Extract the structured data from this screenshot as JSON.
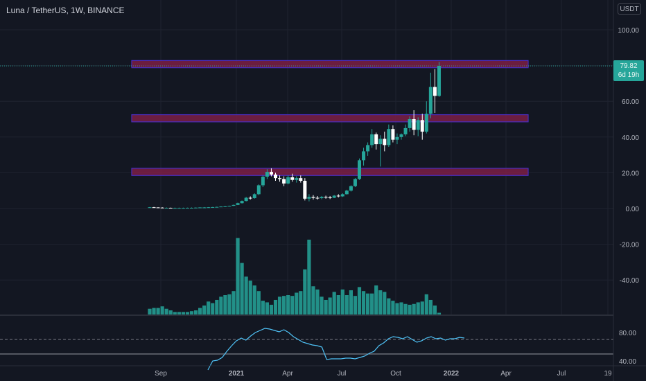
{
  "header": {
    "symbol_title": "Luna / TetherUS, 1W, BINANCE",
    "currency": "USDT"
  },
  "price_label": {
    "price": "79.82",
    "countdown": "6d 19h"
  },
  "colors": {
    "background": "#131722",
    "up": "#26a69a",
    "down": "#ffffff",
    "zone_fill": "#7b1f45",
    "zone_border": "#4a2dbf",
    "rsi_line": "#4fc3f7",
    "volume": "#26a69a"
  },
  "chart_data": [
    {
      "type": "candlestick",
      "title": "Luna / TetherUS, 1W, BINANCE",
      "x_tick_labels": [
        "Sep",
        "2021",
        "Apr",
        "Jul",
        "Oct",
        "2022",
        "Apr",
        "Jul",
        "19"
      ],
      "y_tick_labels": [
        "100.00",
        "80.00",
        "60.00",
        "40.00",
        "20.00",
        "0.00",
        "-20.00",
        "-40.00"
      ],
      "ylim": [
        -58,
        112
      ],
      "candles": [
        {
          "o": 0.6,
          "h": 0.8,
          "l": 0.4,
          "c": 0.7
        },
        {
          "o": 0.7,
          "h": 0.9,
          "l": 0.5,
          "c": 0.6
        },
        {
          "o": 0.6,
          "h": 0.7,
          "l": 0.4,
          "c": 0.5
        },
        {
          "o": 0.5,
          "h": 0.7,
          "l": 0.3,
          "c": 0.4
        },
        {
          "o": 0.4,
          "h": 0.6,
          "l": 0.3,
          "c": 0.4
        },
        {
          "o": 0.4,
          "h": 0.5,
          "l": 0.2,
          "c": 0.3
        },
        {
          "o": 0.3,
          "h": 0.5,
          "l": 0.2,
          "c": 0.3
        },
        {
          "o": 0.3,
          "h": 0.5,
          "l": 0.2,
          "c": 0.3
        },
        {
          "o": 0.3,
          "h": 0.5,
          "l": 0.2,
          "c": 0.3
        },
        {
          "o": 0.3,
          "h": 0.5,
          "l": 0.2,
          "c": 0.4
        },
        {
          "o": 0.4,
          "h": 0.6,
          "l": 0.3,
          "c": 0.4
        },
        {
          "o": 0.4,
          "h": 0.6,
          "l": 0.3,
          "c": 0.5
        },
        {
          "o": 0.5,
          "h": 0.7,
          "l": 0.4,
          "c": 0.6
        },
        {
          "o": 0.6,
          "h": 0.8,
          "l": 0.5,
          "c": 0.6
        },
        {
          "o": 0.6,
          "h": 0.8,
          "l": 0.5,
          "c": 0.7
        },
        {
          "o": 0.7,
          "h": 0.9,
          "l": 0.6,
          "c": 0.8
        },
        {
          "o": 0.8,
          "h": 1.0,
          "l": 0.7,
          "c": 0.9
        },
        {
          "o": 0.9,
          "h": 1.2,
          "l": 0.8,
          "c": 1.1
        },
        {
          "o": 1.1,
          "h": 1.4,
          "l": 1.0,
          "c": 1.2
        },
        {
          "o": 1.2,
          "h": 1.6,
          "l": 1.1,
          "c": 1.5
        },
        {
          "o": 1.5,
          "h": 2.2,
          "l": 1.4,
          "c": 2.0
        },
        {
          "o": 2.0,
          "h": 3.3,
          "l": 1.9,
          "c": 3.0
        },
        {
          "o": 3.0,
          "h": 4.5,
          "l": 2.8,
          "c": 4.2
        },
        {
          "o": 4.2,
          "h": 6.5,
          "l": 4.0,
          "c": 6.0
        },
        {
          "o": 6.0,
          "h": 6.8,
          "l": 5.0,
          "c": 5.8
        },
        {
          "o": 5.8,
          "h": 8.5,
          "l": 5.5,
          "c": 8.0
        },
        {
          "o": 8.0,
          "h": 13.5,
          "l": 7.5,
          "c": 13.0
        },
        {
          "o": 13.0,
          "h": 18.5,
          "l": 12.0,
          "c": 17.8
        },
        {
          "o": 17.8,
          "h": 22.0,
          "l": 16.5,
          "c": 20.5
        },
        {
          "o": 20.5,
          "h": 22.5,
          "l": 18.0,
          "c": 19.0
        },
        {
          "o": 19.0,
          "h": 20.0,
          "l": 15.5,
          "c": 17.0
        },
        {
          "o": 17.0,
          "h": 18.5,
          "l": 15.0,
          "c": 16.5
        },
        {
          "o": 16.5,
          "h": 18.0,
          "l": 12.5,
          "c": 14.0
        },
        {
          "o": 14.0,
          "h": 18.5,
          "l": 13.5,
          "c": 17.5
        },
        {
          "o": 17.5,
          "h": 19.5,
          "l": 15.0,
          "c": 16.0
        },
        {
          "o": 16.0,
          "h": 18.0,
          "l": 14.5,
          "c": 17.0
        },
        {
          "o": 17.0,
          "h": 18.5,
          "l": 14.5,
          "c": 15.5
        },
        {
          "o": 15.5,
          "h": 17.0,
          "l": 4.5,
          "c": 5.5
        },
        {
          "o": 5.5,
          "h": 8.0,
          "l": 4.0,
          "c": 6.5
        },
        {
          "o": 6.5,
          "h": 7.5,
          "l": 5.0,
          "c": 6.0
        },
        {
          "o": 6.0,
          "h": 7.0,
          "l": 5.0,
          "c": 5.8
        },
        {
          "o": 5.8,
          "h": 7.0,
          "l": 5.2,
          "c": 6.5
        },
        {
          "o": 6.5,
          "h": 7.2,
          "l": 5.5,
          "c": 6.2
        },
        {
          "o": 6.2,
          "h": 7.0,
          "l": 5.3,
          "c": 6.0
        },
        {
          "o": 6.0,
          "h": 7.5,
          "l": 5.8,
          "c": 7.2
        },
        {
          "o": 7.2,
          "h": 8.0,
          "l": 6.2,
          "c": 6.8
        },
        {
          "o": 6.8,
          "h": 8.5,
          "l": 6.5,
          "c": 8.0
        },
        {
          "o": 8.0,
          "h": 10.5,
          "l": 7.8,
          "c": 10.0
        },
        {
          "o": 10.0,
          "h": 13.0,
          "l": 9.5,
          "c": 12.5
        },
        {
          "o": 12.5,
          "h": 17.0,
          "l": 12.0,
          "c": 16.5
        },
        {
          "o": 16.5,
          "h": 28.0,
          "l": 16.0,
          "c": 27.0
        },
        {
          "o": 27.0,
          "h": 34.0,
          "l": 24.0,
          "c": 32.0
        },
        {
          "o": 32.0,
          "h": 37.0,
          "l": 29.5,
          "c": 35.5
        },
        {
          "o": 35.5,
          "h": 44.5,
          "l": 34.0,
          "c": 41.5
        },
        {
          "o": 41.5,
          "h": 42.5,
          "l": 33.0,
          "c": 36.0
        },
        {
          "o": 36.0,
          "h": 41.0,
          "l": 23.5,
          "c": 39.0
        },
        {
          "o": 39.0,
          "h": 43.0,
          "l": 32.0,
          "c": 35.5
        },
        {
          "o": 35.5,
          "h": 47.0,
          "l": 34.5,
          "c": 44.5
        },
        {
          "o": 44.5,
          "h": 46.5,
          "l": 37.0,
          "c": 38.5
        },
        {
          "o": 38.5,
          "h": 42.0,
          "l": 36.0,
          "c": 40.0
        },
        {
          "o": 40.0,
          "h": 42.0,
          "l": 38.5,
          "c": 41.5
        },
        {
          "o": 41.5,
          "h": 47.0,
          "l": 40.5,
          "c": 45.0
        },
        {
          "o": 45.0,
          "h": 51.5,
          "l": 43.0,
          "c": 50.0
        },
        {
          "o": 50.0,
          "h": 55.0,
          "l": 41.0,
          "c": 44.0
        },
        {
          "o": 44.0,
          "h": 51.0,
          "l": 40.5,
          "c": 49.5
        },
        {
          "o": 49.5,
          "h": 53.0,
          "l": 38.5,
          "c": 43.0
        },
        {
          "o": 43.0,
          "h": 60.0,
          "l": 42.0,
          "c": 53.0
        },
        {
          "o": 53.0,
          "h": 76.0,
          "l": 50.5,
          "c": 68.0
        },
        {
          "o": 68.0,
          "h": 78.0,
          "l": 53.5,
          "c": 63.0
        },
        {
          "o": 63.0,
          "h": 82.0,
          "l": 62.5,
          "c": 79.82
        }
      ],
      "volume": [
        8,
        9,
        9,
        11,
        8,
        6,
        4,
        4,
        4,
        4,
        5,
        6,
        9,
        12,
        17,
        15,
        19,
        23,
        25,
        26,
        30,
        96,
        65,
        48,
        43,
        37,
        30,
        18,
        16,
        13,
        19,
        23,
        24,
        25,
        24,
        28,
        30,
        57,
        94,
        36,
        32,
        23,
        19,
        22,
        29,
        25,
        32,
        25,
        31,
        24,
        35,
        30,
        27,
        27,
        37,
        31,
        29,
        21,
        18,
        15,
        16,
        14,
        13,
        14,
        16,
        17,
        26,
        19,
        12,
        3
      ],
      "rsi": {
        "values": [
          26,
          39,
          40,
          44,
          53,
          61,
          68,
          72,
          69,
          75,
          80,
          83,
          86,
          85,
          83,
          81,
          84,
          80,
          74,
          70,
          66,
          64,
          62,
          61,
          59,
          41,
          42,
          42,
          42,
          43,
          43,
          42,
          44,
          46,
          50,
          53,
          61,
          65,
          71,
          74,
          73,
          71,
          74,
          70,
          66,
          68,
          72,
          74,
          71,
          72,
          69,
          71,
          71,
          73,
          72
        ],
        "levels": [
          70,
          50
        ],
        "y_tick_labels": [
          "80.00",
          "40.00"
        ]
      },
      "annotations": [
        {
          "type": "zone",
          "from": 78.8,
          "to": 82.8
        },
        {
          "type": "zone",
          "from": 48.5,
          "to": 52.5
        },
        {
          "type": "zone",
          "from": 18.5,
          "to": 22.5
        }
      ]
    }
  ]
}
